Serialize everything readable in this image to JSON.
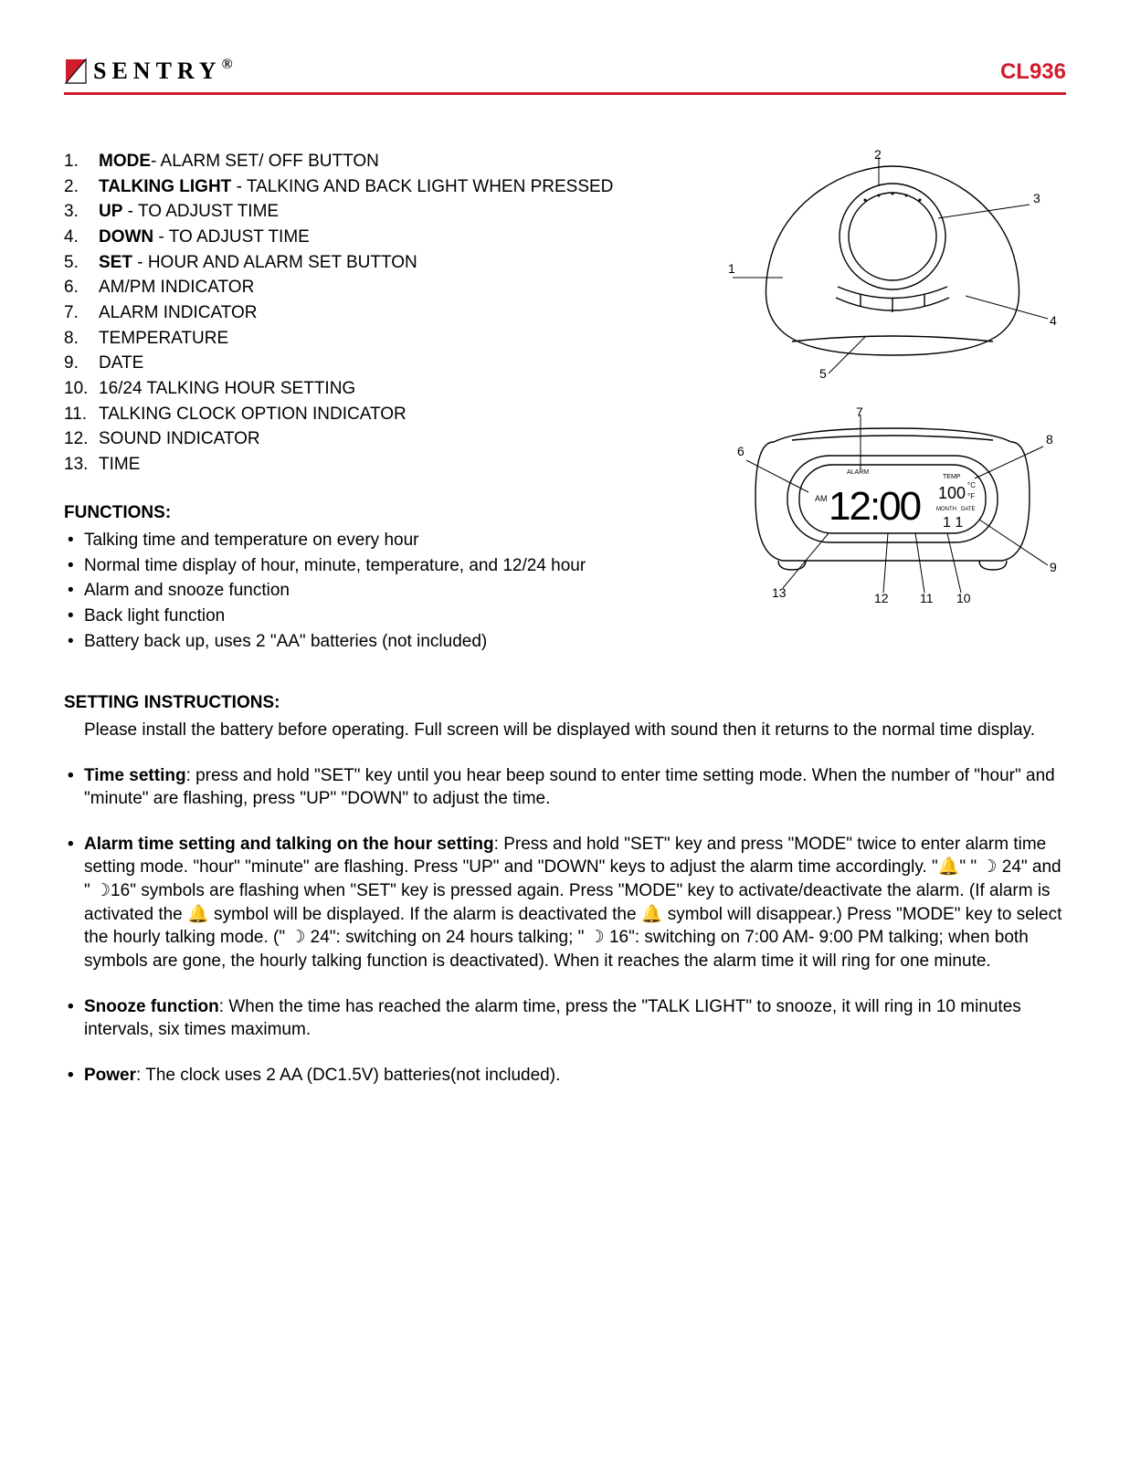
{
  "colors": {
    "accent": "#d01c2e",
    "text": "#000000",
    "bg": "#ffffff",
    "line": "#000000"
  },
  "header": {
    "brand": "SENTRY",
    "brand_suffix": ".",
    "model": "CL936"
  },
  "parts": {
    "title_hidden": "",
    "items": [
      {
        "bold": "MODE",
        "rest": "- ALARM SET/ OFF BUTTON"
      },
      {
        "bold": "TALKING LIGHT",
        "rest": " - TALKING AND BACK LIGHT WHEN PRESSED"
      },
      {
        "bold": "UP",
        "rest": " - TO ADJUST TIME"
      },
      {
        "bold": "DOWN",
        "rest": " - TO ADJUST TIME"
      },
      {
        "bold": "SET",
        "rest": " - HOUR AND ALARM SET BUTTON"
      },
      {
        "bold": "",
        "rest": "AM/PM INDICATOR"
      },
      {
        "bold": "",
        "rest": "ALARM INDICATOR"
      },
      {
        "bold": "",
        "rest": "TEMPERATURE"
      },
      {
        "bold": "",
        "rest": "DATE"
      },
      {
        "bold": "",
        "rest": "16/24 TALKING HOUR SETTING"
      },
      {
        "bold": "",
        "rest": "TALKING CLOCK OPTION INDICATOR"
      },
      {
        "bold": "",
        "rest": "SOUND INDICATOR"
      },
      {
        "bold": "",
        "rest": "TIME"
      }
    ]
  },
  "functions": {
    "title": "FUNCTIONS:",
    "items": [
      "Talking time and temperature on every hour",
      "Normal time display of hour, minute, temperature, and 12/24 hour",
      "Alarm and snooze function",
      "Back light function",
      "Battery back up, uses 2 \"AA\" batteries (not included)"
    ]
  },
  "setting": {
    "title": "SETTING INSTRUCTIONS:",
    "intro": "Please install the battery before operating. Full screen will be displayed with sound then it returns to the normal time display.",
    "items": [
      {
        "bold": "Time setting",
        "rest": ": press and hold \"SET\" key until you hear beep sound to enter time setting mode. When  the number of \"hour\" and \"minute\" are flashing, press \"UP\" \"DOWN\" to adjust the time."
      },
      {
        "bold": "Alarm time setting and talking on the hour setting",
        "rest": ": Press and hold \"SET\" key and press \"MODE\" twice to enter alarm time setting mode. \"hour\"  \"minute\" are flashing. Press \"UP\" and \"DOWN\" keys to adjust the alarm time accordingly. \"🔔\" \" ☽ 24\" and \" ☽16\" symbols are flashing when \"SET\" key is pressed again. Press \"MODE\" key to activate/deactivate the alarm. (If alarm is activated the 🔔 symbol will be displayed. If the alarm is deactivated the 🔔 symbol will disappear.) Press \"MODE\" key to select the hourly talking mode. (\" ☽ 24\": switching on 24 hours talking; \"  ☽ 16\": switching on 7:00 AM- 9:00 PM talking; when both symbols are gone, the hourly talking function is deactivated). When it reaches the alarm time it will ring for one minute."
      },
      {
        "bold": "Snooze function",
        "rest": ": When the time has reached the alarm time, press the \"TALK LIGHT\" to snooze, it will ring in 10 minutes intervals, six times maximum."
      },
      {
        "bold": "Power",
        "rest": ": The clock uses 2 AA (DC1.5V) batteries(not included)."
      }
    ]
  },
  "diagrams": {
    "top": {
      "labels": {
        "1": "1",
        "2": "2",
        "3": "3",
        "4": "4",
        "5": "5"
      },
      "stroke": "#000000",
      "stroke_width": 1.4
    },
    "front": {
      "labels": {
        "6": "6",
        "7": "7",
        "8": "8",
        "9": "9",
        "10": "10",
        "11": "11",
        "12": "12",
        "13": "13"
      },
      "display": {
        "ampm": "AM",
        "time": "12:00",
        "temp": "100",
        "temp_unit_c": "°C",
        "temp_unit_f": "°F",
        "month": "MONTH",
        "date": "DATE",
        "md_value": "1 1",
        "alarm_label": "ALARM",
        "temp_label": "TEMP"
      },
      "stroke": "#000000",
      "stroke_width": 1.4
    }
  }
}
